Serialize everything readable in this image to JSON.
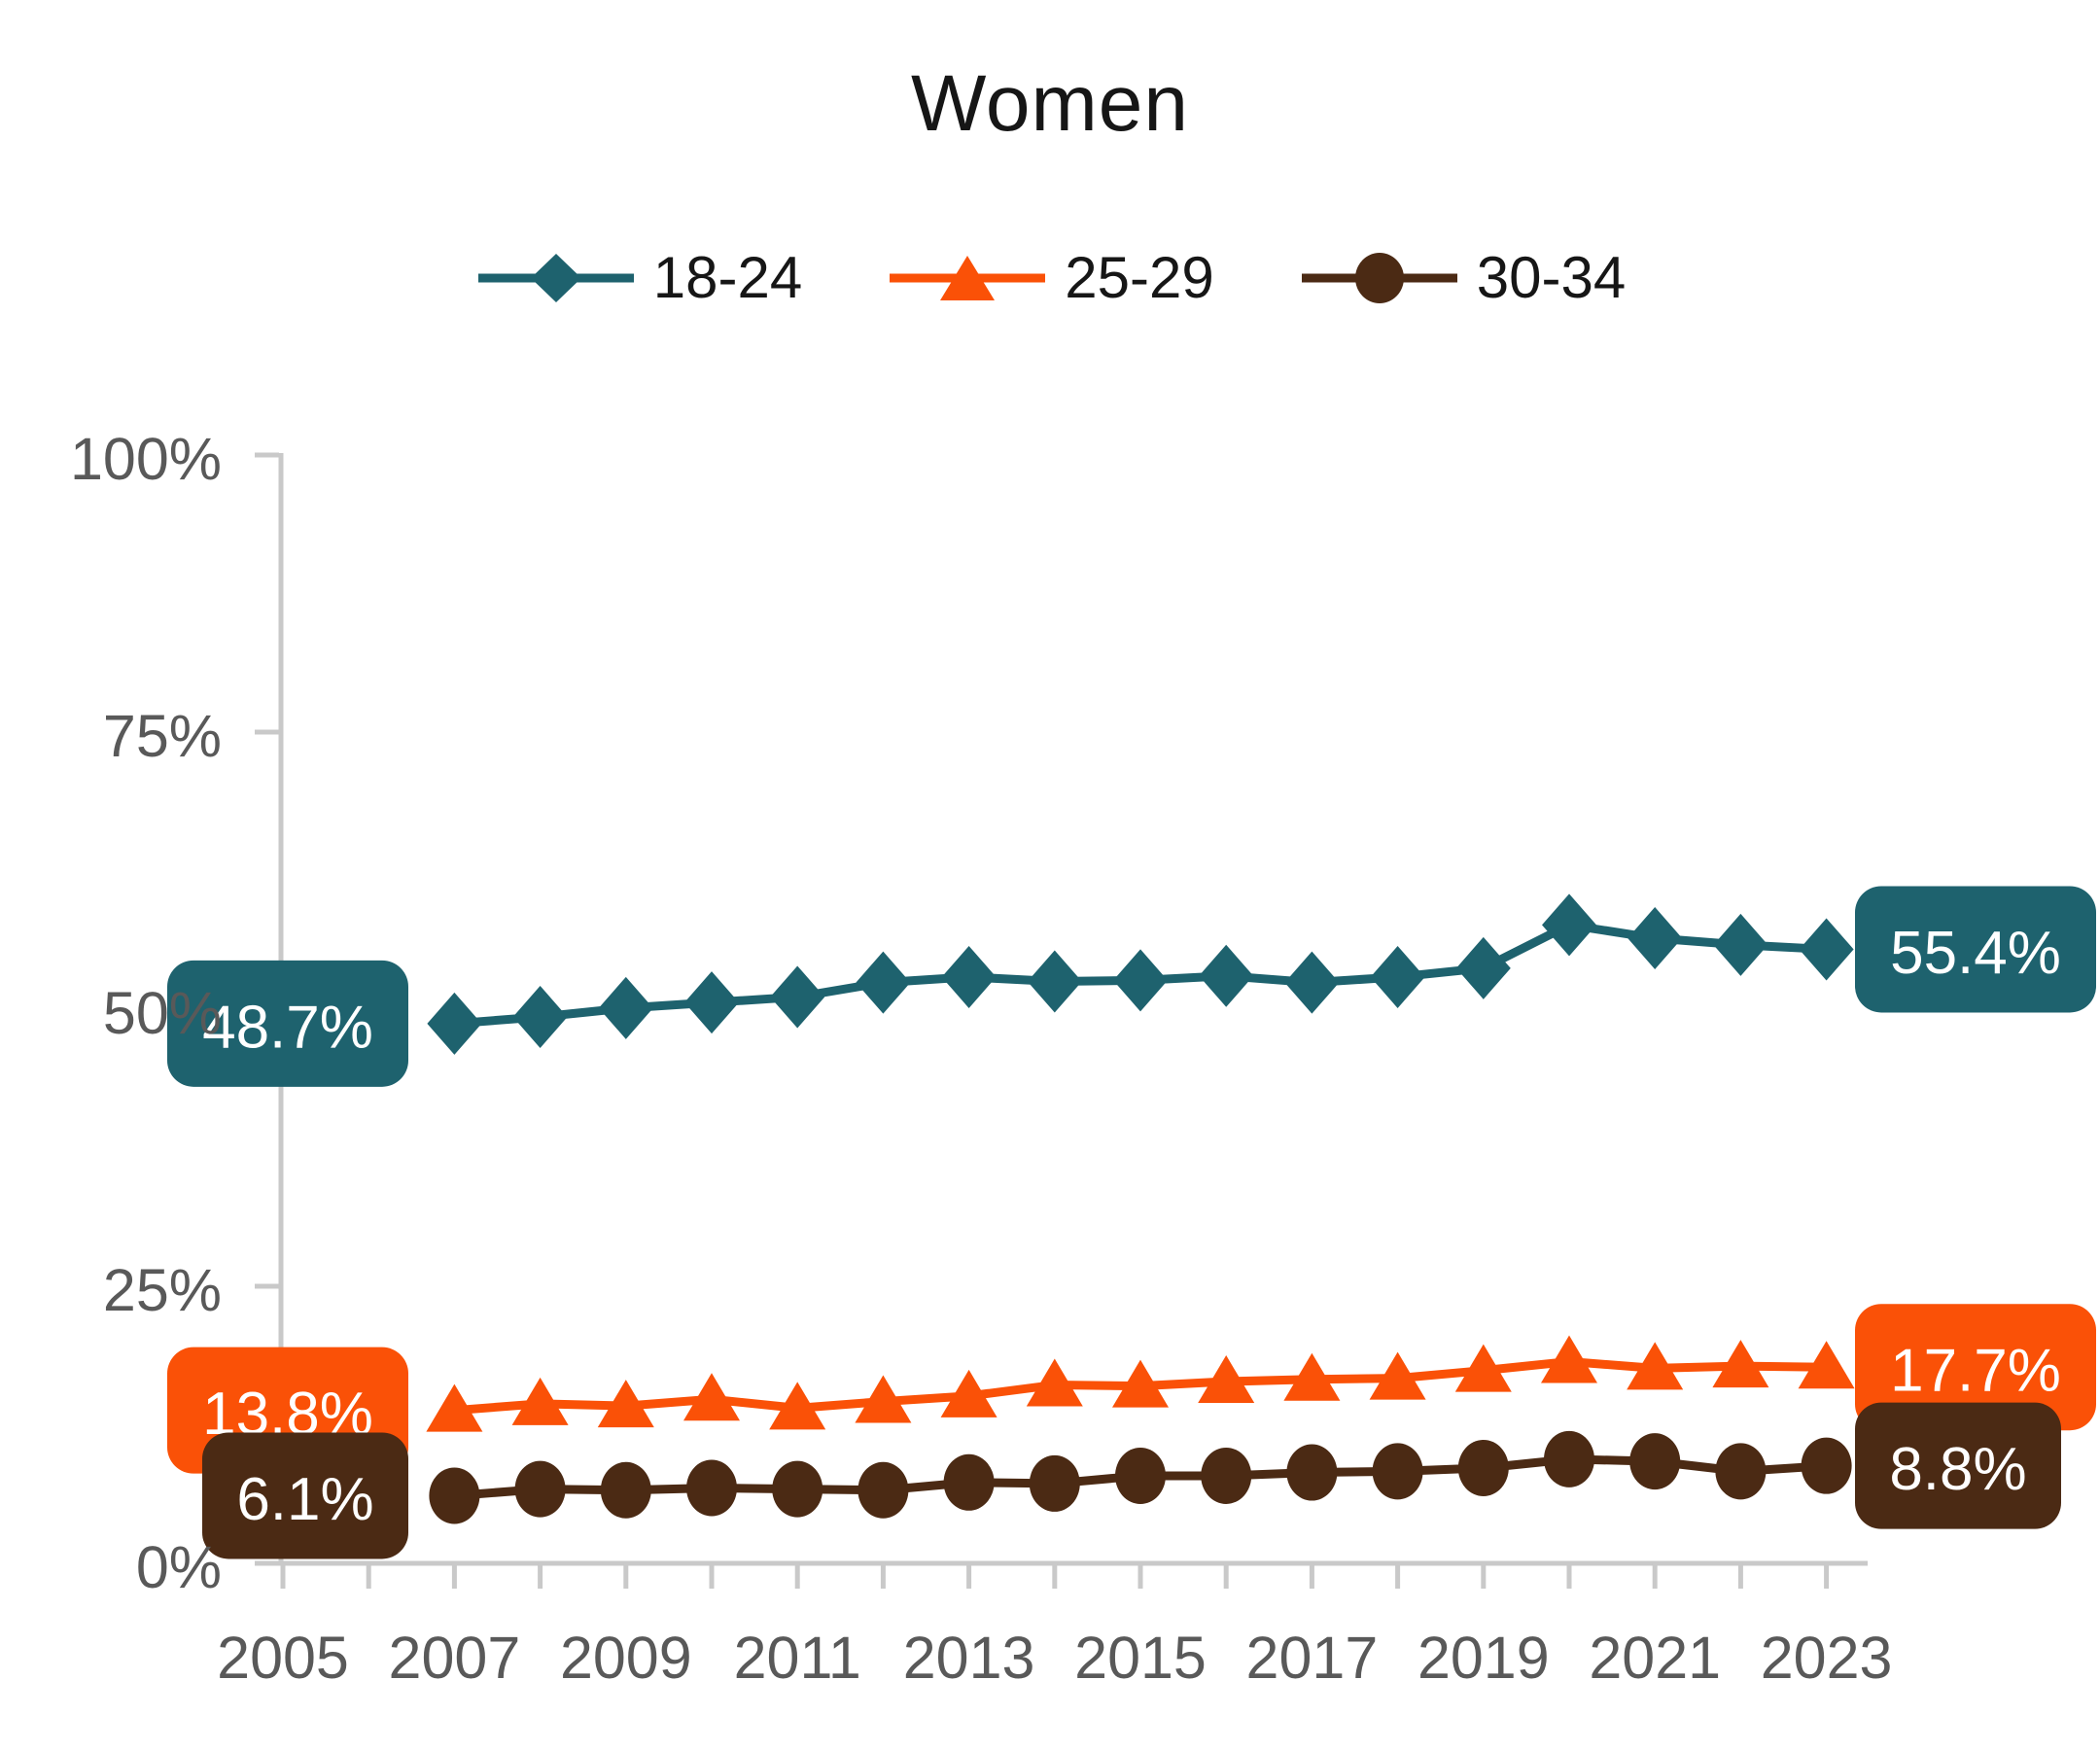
{
  "chart_data": {
    "type": "line",
    "title": "Women",
    "x": [
      2007,
      2008,
      2009,
      2010,
      2011,
      2012,
      2013,
      2014,
      2015,
      2016,
      2017,
      2018,
      2019,
      2020,
      2021,
      2022,
      2023
    ],
    "series": [
      {
        "name": "18-24",
        "marker": "diamond",
        "color": "#1E626E",
        "values": [
          48.7,
          49.3,
          50.1,
          50.6,
          51.1,
          52.4,
          52.9,
          52.5,
          52.6,
          53.0,
          52.4,
          52.9,
          53.7,
          57.6,
          56.4,
          55.8,
          55.4
        ],
        "start_label": "48.7%",
        "end_label": "55.4%"
      },
      {
        "name": "25-29",
        "marker": "triangle",
        "color": "#FA5107",
        "values": [
          13.8,
          14.4,
          14.2,
          14.8,
          14.0,
          14.6,
          15.1,
          16.1,
          16.0,
          16.4,
          16.6,
          16.7,
          17.4,
          18.2,
          17.6,
          17.8,
          17.7
        ],
        "start_label": "13.8%",
        "end_label": "17.7%"
      },
      {
        "name": "30-34",
        "marker": "circle",
        "color": "#4B2A14",
        "values": [
          6.1,
          6.7,
          6.6,
          6.8,
          6.7,
          6.6,
          7.3,
          7.2,
          7.9,
          7.9,
          8.2,
          8.3,
          8.6,
          9.4,
          9.2,
          8.3,
          8.8
        ],
        "start_label": "6.1%",
        "end_label": "8.8%"
      }
    ],
    "x_axis": {
      "range": [
        2005,
        2023
      ],
      "tick_every_years": 1,
      "label_every_years": 2,
      "labels": [
        "2005",
        "2007",
        "2009",
        "2011",
        "2013",
        "2015",
        "2017",
        "2019",
        "2021",
        "2023"
      ]
    },
    "y_axis": {
      "range": [
        0,
        100
      ],
      "tick_values": [
        0,
        25,
        50,
        75,
        100
      ],
      "labels": [
        "0%",
        "25%",
        "50%",
        "75%",
        "100%"
      ]
    },
    "grid": false,
    "legend_position": "top",
    "style": {
      "axis_color": "#C9C9C9",
      "tick_label_color": "#595959",
      "title_color": "#161616",
      "label_text_color": "#FFFFFF"
    }
  }
}
